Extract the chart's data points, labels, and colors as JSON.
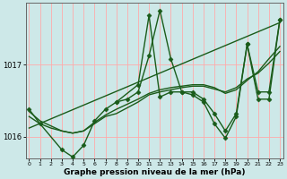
{
  "xlabel": "Graphe pression niveau de la mer (hPa)",
  "background_color": "#cde8e8",
  "grid_color": "#ffaaaa",
  "line_color": "#1a5c1a",
  "ylim": [
    1015.7,
    1017.85
  ],
  "xlim": [
    -0.3,
    23.3
  ],
  "series1_x": [
    0,
    1,
    3,
    4,
    5,
    6,
    7,
    8,
    10,
    11,
    12,
    13,
    14,
    15,
    16,
    17,
    18,
    19,
    20,
    21,
    22,
    23
  ],
  "series1_y": [
    1016.38,
    1016.18,
    1015.82,
    1015.72,
    1015.88,
    1016.22,
    1016.38,
    1016.48,
    1016.72,
    1017.68,
    1016.55,
    1016.62,
    1016.62,
    1016.58,
    1016.48,
    1016.18,
    1015.98,
    1016.28,
    1017.28,
    1016.52,
    1016.52,
    1017.62
  ],
  "series2_x": [
    8,
    9,
    10,
    11,
    12,
    13,
    14,
    15,
    16,
    17,
    18,
    19,
    20,
    21,
    22,
    23
  ],
  "series2_y": [
    1016.48,
    1016.52,
    1016.62,
    1017.12,
    1017.75,
    1017.08,
    1016.62,
    1016.62,
    1016.52,
    1016.32,
    1016.08,
    1016.32,
    1017.28,
    1016.62,
    1016.62,
    1017.62
  ],
  "trend_x": [
    0,
    23
  ],
  "trend_y": [
    1016.12,
    1017.58
  ],
  "smooth1_x": [
    0,
    1,
    2,
    3,
    4,
    5,
    6,
    7,
    8,
    9,
    10,
    11,
    12,
    13,
    14,
    15,
    16,
    17,
    18,
    19,
    20,
    21,
    22,
    23
  ],
  "smooth1_y": [
    1016.28,
    1016.18,
    1016.12,
    1016.08,
    1016.05,
    1016.08,
    1016.18,
    1016.28,
    1016.32,
    1016.4,
    1016.48,
    1016.58,
    1016.62,
    1016.65,
    1016.68,
    1016.7,
    1016.7,
    1016.66,
    1016.62,
    1016.68,
    1016.8,
    1016.88,
    1017.02,
    1017.18
  ],
  "smooth2_x": [
    0,
    1,
    2,
    3,
    4,
    5,
    6,
    7,
    8,
    9,
    10,
    11,
    12,
    13,
    14,
    15,
    16,
    17,
    18,
    19,
    20,
    21,
    22,
    23
  ],
  "smooth2_y": [
    1016.35,
    1016.22,
    1016.15,
    1016.08,
    1016.05,
    1016.08,
    1016.2,
    1016.3,
    1016.38,
    1016.45,
    1016.52,
    1016.6,
    1016.65,
    1016.68,
    1016.7,
    1016.72,
    1016.72,
    1016.68,
    1016.6,
    1016.65,
    1016.78,
    1016.9,
    1017.08,
    1017.25
  ],
  "marker": "D",
  "markersize": 2.5,
  "linewidth": 1.0
}
